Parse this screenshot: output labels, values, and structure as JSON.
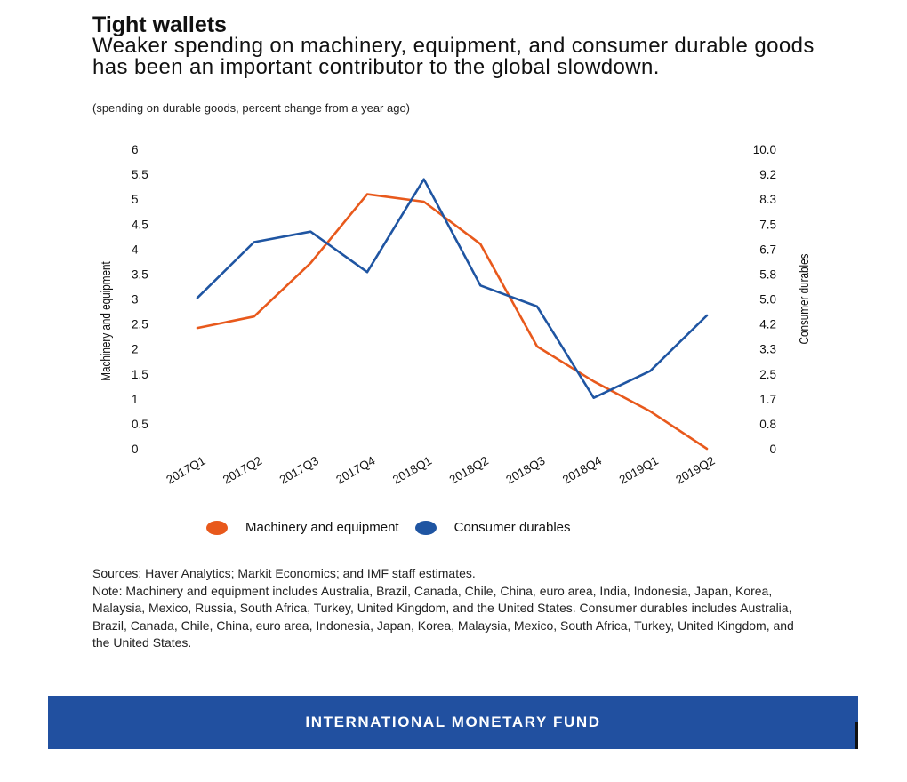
{
  "header": {
    "title": "Tight wallets",
    "subtitle": "Weaker spending on machinery, equipment, and consumer durable goods has been an important contributor to the global slowdown.",
    "unit_note": "(spending on durable goods, percent change from a year ago)"
  },
  "chart_data": {
    "type": "line",
    "categories": [
      "2017Q1",
      "2017Q2",
      "2017Q3",
      "2017Q4",
      "2018Q1",
      "2018Q2",
      "2018Q3",
      "2018Q4",
      "2019Q1",
      "2019Q2"
    ],
    "series": [
      {
        "name": "Machinery and equipment",
        "axis": "left",
        "color": "#e8591c",
        "values": [
          2.42,
          2.65,
          3.72,
          5.1,
          4.95,
          4.1,
          2.05,
          1.35,
          0.75,
          0.0
        ]
      },
      {
        "name": "Consumer durables",
        "axis": "right",
        "color": "#1f55a2",
        "values": [
          5.04,
          6.9,
          7.25,
          5.9,
          9.0,
          5.45,
          4.75,
          1.7,
          2.6,
          4.45
        ]
      }
    ],
    "ylabel": "Machinery and equipment",
    "y2label": "Consumer durables",
    "ylim": [
      0,
      6
    ],
    "y2lim": [
      0,
      10
    ],
    "yticks": [
      "0",
      "0.5",
      "1",
      "1.5",
      "2",
      "2.5",
      "3",
      "3.5",
      "4",
      "4.5",
      "5",
      "5.5",
      "6"
    ],
    "y2ticks": [
      "0",
      "0.8",
      "1.7",
      "2.5",
      "3.3",
      "4.2",
      "5.0",
      "5.8",
      "6.7",
      "7.5",
      "8.3",
      "9.2",
      "10.0"
    ],
    "grid": false,
    "legend": "bottom"
  },
  "footer": {
    "sources": "Sources: Haver Analytics; Markit Economics; and IMF staff estimates.",
    "note": "Note: Machinery and equipment includes Australia, Brazil, Canada, Chile, China, euro area, India, Indonesia, Japan, Korea, Malaysia, Mexico, Russia, South Africa, Turkey, United Kingdom, and the United States. Consumer durables includes Australia, Brazil, Canada, Chile, China, euro area, Indonesia, Japan, Korea, Malaysia, Mexico, South Africa, Turkey, United Kingdom, and the United States."
  },
  "branding": {
    "banner_text": "INTERNATIONAL MONETARY FUND",
    "banner_color": "#2150a0"
  }
}
